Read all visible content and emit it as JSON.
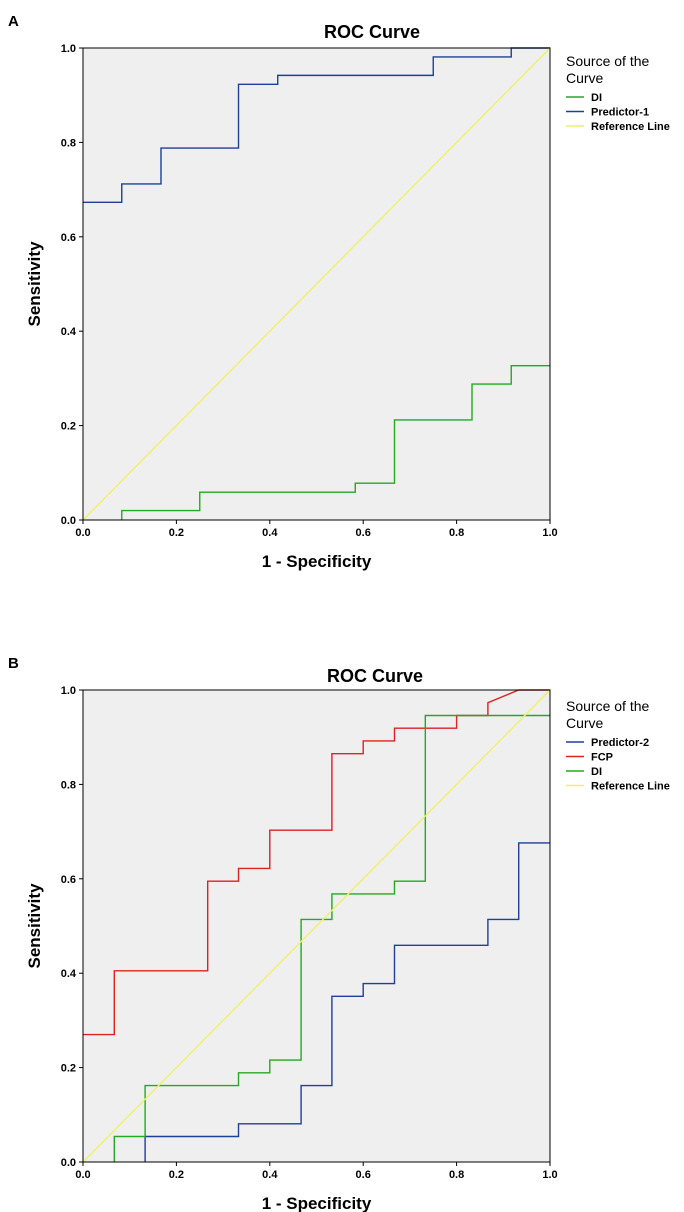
{
  "chart_data": [
    {
      "type": "line",
      "panel": "A",
      "title": "ROC Curve",
      "xlabel": "1 - Specificity",
      "ylabel": "Sensitivity",
      "xlim": [
        0,
        1
      ],
      "ylim": [
        0,
        1
      ],
      "xticks": [
        "0.0",
        "0.2",
        "0.4",
        "0.6",
        "0.8",
        "1.0"
      ],
      "yticks": [
        "0.0",
        "0.2",
        "0.4",
        "0.6",
        "0.8",
        "1.0"
      ],
      "legend_title": "Source of the Curve",
      "legend_position": "right",
      "series": [
        {
          "name": "DI",
          "color": "#22aa22",
          "points": [
            [
              0.083,
              0
            ],
            [
              0.083,
              0.02
            ],
            [
              0.25,
              0.02
            ],
            [
              0.25,
              0.059
            ],
            [
              0.583,
              0.059
            ],
            [
              0.583,
              0.078
            ],
            [
              0.667,
              0.078
            ],
            [
              0.667,
              0.212
            ],
            [
              0.833,
              0.212
            ],
            [
              0.833,
              0.288
            ],
            [
              0.917,
              0.288
            ],
            [
              0.917,
              0.327
            ],
            [
              1.0,
              0.327
            ]
          ]
        },
        {
          "name": "Predictor-1",
          "color": "#1f3f99",
          "points": [
            [
              0,
              0.673
            ],
            [
              0.083,
              0.673
            ],
            [
              0.083,
              0.712
            ],
            [
              0.167,
              0.712
            ],
            [
              0.167,
              0.788
            ],
            [
              0.333,
              0.788
            ],
            [
              0.333,
              0.923
            ],
            [
              0.417,
              0.923
            ],
            [
              0.417,
              0.942
            ],
            [
              0.75,
              0.942
            ],
            [
              0.75,
              0.981
            ],
            [
              0.917,
              0.981
            ],
            [
              0.917,
              1.0
            ],
            [
              1.0,
              1.0
            ]
          ]
        },
        {
          "name": "Reference Line",
          "color": "#f0f06a",
          "points": [
            [
              0,
              0
            ],
            [
              1,
              1
            ]
          ]
        }
      ]
    },
    {
      "type": "line",
      "panel": "B",
      "title": "ROC Curve",
      "xlabel": "1 - Specificity",
      "ylabel": "Sensitivity",
      "xlim": [
        0,
        1
      ],
      "ylim": [
        0,
        1
      ],
      "xticks": [
        "0.0",
        "0.2",
        "0.4",
        "0.6",
        "0.8",
        "1.0"
      ],
      "yticks": [
        "0.0",
        "0.2",
        "0.4",
        "0.6",
        "0.8",
        "1.0"
      ],
      "legend_title": "Source of the Curve",
      "legend_position": "right",
      "series": [
        {
          "name": "Predictor-2",
          "color": "#1f3f99",
          "points": [
            [
              0.133,
              0
            ],
            [
              0.133,
              0.054
            ],
            [
              0.333,
              0.054
            ],
            [
              0.333,
              0.081
            ],
            [
              0.467,
              0.081
            ],
            [
              0.467,
              0.162
            ],
            [
              0.533,
              0.162
            ],
            [
              0.533,
              0.351
            ],
            [
              0.6,
              0.351
            ],
            [
              0.6,
              0.378
            ],
            [
              0.667,
              0.378
            ],
            [
              0.667,
              0.459
            ],
            [
              0.867,
              0.459
            ],
            [
              0.867,
              0.514
            ],
            [
              0.933,
              0.514
            ],
            [
              0.933,
              0.676
            ],
            [
              1.0,
              0.676
            ]
          ]
        },
        {
          "name": "FCP",
          "color": "#dd2222",
          "points": [
            [
              0,
              0.27
            ],
            [
              0.067,
              0.27
            ],
            [
              0.067,
              0.405
            ],
            [
              0.267,
              0.405
            ],
            [
              0.267,
              0.595
            ],
            [
              0.333,
              0.595
            ],
            [
              0.333,
              0.622
            ],
            [
              0.4,
              0.622
            ],
            [
              0.4,
              0.703
            ],
            [
              0.533,
              0.703
            ],
            [
              0.533,
              0.865
            ],
            [
              0.6,
              0.865
            ],
            [
              0.6,
              0.892
            ],
            [
              0.667,
              0.892
            ],
            [
              0.667,
              0.919
            ],
            [
              0.8,
              0.919
            ],
            [
              0.8,
              0.946
            ],
            [
              0.867,
              0.946
            ],
            [
              0.867,
              0.973
            ],
            [
              0.933,
              1.0
            ],
            [
              1.0,
              1.0
            ]
          ]
        },
        {
          "name": "DI",
          "color": "#22aa22",
          "points": [
            [
              0.067,
              0
            ],
            [
              0.067,
              0.054
            ],
            [
              0.133,
              0.054
            ],
            [
              0.133,
              0.162
            ],
            [
              0.333,
              0.162
            ],
            [
              0.333,
              0.189
            ],
            [
              0.4,
              0.189
            ],
            [
              0.4,
              0.216
            ],
            [
              0.467,
              0.216
            ],
            [
              0.467,
              0.514
            ],
            [
              0.533,
              0.514
            ],
            [
              0.533,
              0.568
            ],
            [
              0.667,
              0.568
            ],
            [
              0.667,
              0.595
            ],
            [
              0.733,
              0.595
            ],
            [
              0.733,
              0.946
            ],
            [
              1.0,
              0.946
            ]
          ]
        },
        {
          "name": "Reference Line",
          "color": "#f0f06a",
          "points": [
            [
              0,
              0
            ],
            [
              1,
              1
            ]
          ]
        }
      ]
    }
  ]
}
